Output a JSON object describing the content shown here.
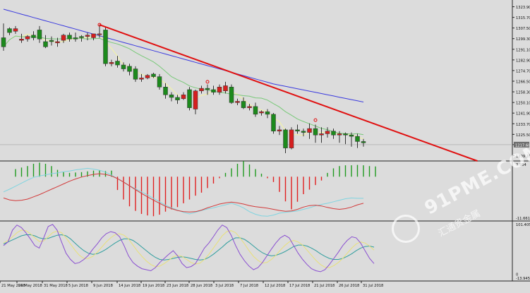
{
  "chart_data": [
    {
      "type": "candlestick",
      "title": "",
      "price_ticks": [
        "1323.90",
        "1315.70",
        "1307.50",
        "1299.30",
        "1291.10",
        "1282.90",
        "1274.70",
        "1266.50",
        "1258.30",
        "1250.10",
        "1241.90",
        "1233.70",
        "1225.50",
        "1217.60",
        "1209.10"
      ],
      "current_price_label": "1217.60",
      "ylim": [
        1205,
        1328
      ],
      "x_labels": [
        "21 May 2018",
        "24 May 2018",
        "31 May 2018",
        "5 Jun 2018",
        "9 Jun 2018",
        "14 Jun 2018",
        "19 Jun 2018",
        "23 Jun 2018",
        "28 Jun 2018",
        "3 Jul 2018",
        "7 Jul 2018",
        "12 Jul 2018",
        "17 Jul 2018",
        "21 Jul 2018",
        "26 Jul 2018",
        "31 Jul 2018"
      ],
      "candles": [
        {
          "o": 1300,
          "h": 1311,
          "c": 1293,
          "l": 1290
        },
        {
          "o": 1307,
          "h": 1308,
          "c": 1304,
          "l": 1302
        },
        {
          "o": 1305,
          "h": 1309,
          "c": 1307,
          "l": 1303
        },
        {
          "o": 1298,
          "h": 1303,
          "c": 1299,
          "l": 1296
        },
        {
          "o": 1299,
          "h": 1302,
          "c": 1301,
          "l": 1297
        },
        {
          "o": 1302,
          "h": 1305,
          "c": 1300,
          "l": 1298
        },
        {
          "o": 1306,
          "h": 1309,
          "c": 1299,
          "l": 1296
        },
        {
          "o": 1297,
          "h": 1302,
          "c": 1293,
          "l": 1292
        },
        {
          "o": 1298,
          "h": 1301,
          "c": 1297,
          "l": 1294
        },
        {
          "o": 1296,
          "h": 1300,
          "c": 1297,
          "l": 1293
        },
        {
          "o": 1298,
          "h": 1303,
          "c": 1302,
          "l": 1296
        },
        {
          "o": 1302,
          "h": 1304,
          "c": 1299,
          "l": 1297
        },
        {
          "o": 1300,
          "h": 1304,
          "c": 1299,
          "l": 1297
        },
        {
          "o": 1301,
          "h": 1302,
          "c": 1300,
          "l": 1297
        },
        {
          "o": 1301,
          "h": 1304,
          "c": 1302,
          "l": 1298
        },
        {
          "o": 1300,
          "h": 1303,
          "c": 1303,
          "l": 1298
        },
        {
          "o": 1303,
          "h": 1310,
          "c": 1303,
          "l": 1300
        },
        {
          "o": 1306,
          "h": 1308,
          "c": 1280,
          "l": 1278
        },
        {
          "o": 1280,
          "h": 1283,
          "c": 1281,
          "l": 1278
        },
        {
          "o": 1282,
          "h": 1286,
          "c": 1279,
          "l": 1277
        },
        {
          "o": 1279,
          "h": 1281,
          "c": 1276,
          "l": 1274
        },
        {
          "o": 1278,
          "h": 1280,
          "c": 1274,
          "l": 1271
        },
        {
          "o": 1276,
          "h": 1278,
          "c": 1268,
          "l": 1266
        },
        {
          "o": 1268,
          "h": 1272,
          "c": 1269,
          "l": 1266
        },
        {
          "o": 1269,
          "h": 1272,
          "c": 1271,
          "l": 1268
        },
        {
          "o": 1272,
          "h": 1273,
          "c": 1270,
          "l": 1269
        },
        {
          "o": 1270,
          "h": 1272,
          "c": 1262,
          "l": 1260
        },
        {
          "o": 1262,
          "h": 1265,
          "c": 1256,
          "l": 1253
        },
        {
          "o": 1256,
          "h": 1258,
          "c": 1254,
          "l": 1251
        },
        {
          "o": 1254,
          "h": 1256,
          "c": 1252,
          "l": 1249
        },
        {
          "o": 1253,
          "h": 1258,
          "c": 1256,
          "l": 1252
        },
        {
          "o": 1260,
          "h": 1262,
          "c": 1246,
          "l": 1244
        },
        {
          "o": 1245,
          "h": 1260,
          "c": 1259,
          "l": 1241
        },
        {
          "o": 1259,
          "h": 1263,
          "c": 1261,
          "l": 1257
        },
        {
          "o": 1261,
          "h": 1264,
          "c": 1260,
          "l": 1256
        },
        {
          "o": 1260,
          "h": 1263,
          "c": 1258,
          "l": 1256
        },
        {
          "o": 1258,
          "h": 1264,
          "c": 1262,
          "l": 1256
        },
        {
          "o": 1259,
          "h": 1266,
          "c": 1263,
          "l": 1257
        },
        {
          "o": 1262,
          "h": 1264,
          "c": 1250,
          "l": 1249
        },
        {
          "o": 1250,
          "h": 1253,
          "c": 1251,
          "l": 1248
        },
        {
          "o": 1251,
          "h": 1254,
          "c": 1246,
          "l": 1245
        },
        {
          "o": 1246,
          "h": 1249,
          "c": 1247,
          "l": 1244
        },
        {
          "o": 1247,
          "h": 1250,
          "c": 1241,
          "l": 1239
        },
        {
          "o": 1242,
          "h": 1244,
          "c": 1243,
          "l": 1240
        },
        {
          "o": 1243,
          "h": 1245,
          "c": 1241,
          "l": 1238
        },
        {
          "o": 1241,
          "h": 1242,
          "c": 1228,
          "l": 1226
        },
        {
          "o": 1228,
          "h": 1232,
          "c": 1229,
          "l": 1225
        },
        {
          "o": 1229,
          "h": 1230,
          "c": 1215,
          "l": 1211
        },
        {
          "o": 1215,
          "h": 1231,
          "c": 1229,
          "l": 1214
        },
        {
          "o": 1229,
          "h": 1233,
          "c": 1228,
          "l": 1226
        },
        {
          "o": 1228,
          "h": 1230,
          "c": 1227,
          "l": 1224
        },
        {
          "o": 1227,
          "h": 1234,
          "c": 1230,
          "l": 1222
        },
        {
          "o": 1230,
          "h": 1233,
          "c": 1225,
          "l": 1219
        },
        {
          "o": 1225,
          "h": 1231,
          "c": 1226,
          "l": 1219
        },
        {
          "o": 1226,
          "h": 1231,
          "c": 1228,
          "l": 1223
        },
        {
          "o": 1228,
          "h": 1230,
          "c": 1225,
          "l": 1222
        },
        {
          "o": 1225,
          "h": 1228,
          "c": 1226,
          "l": 1219
        },
        {
          "o": 1226,
          "h": 1227,
          "c": 1225,
          "l": 1218
        },
        {
          "o": 1225,
          "h": 1227,
          "c": 1224,
          "l": 1216
        },
        {
          "o": 1224,
          "h": 1226,
          "c": 1220,
          "l": 1215
        },
        {
          "o": 1220,
          "h": 1222,
          "c": 1219,
          "l": 1216
        }
      ],
      "trendline_start": [
        16,
        1310
      ],
      "trendline_end": [
        79,
        1205
      ]
    },
    {
      "type": "bar",
      "indicator": "MACD",
      "ytick_top": "3.954",
      "ytick_bottom": "-11.661",
      "ylim": [
        -11.661,
        3.954
      ],
      "values": [
        2.0,
        2.4,
        2.8,
        3.4,
        3.7,
        3.4,
        2.8,
        1.8,
        1.2,
        1.0,
        1.1,
        1.2,
        1.4,
        1.6,
        1.7,
        1.5,
        1.6,
        -3.5,
        -6.0,
        -7.8,
        -9.0,
        -9.8,
        -10.2,
        -10.4,
        -10.0,
        -9.2,
        -8.6,
        -8.0,
        -7.0,
        -6.0,
        -5.0,
        -4.2,
        -3.0,
        -1.8,
        -0.4,
        1.0,
        2.2,
        3.4,
        4.1,
        3.2,
        2.0,
        0.8,
        -0.4,
        -1.4,
        -4.0,
        -6.5,
        -8.6,
        -6.6,
        -4.6,
        -3.4,
        -2.2,
        -1.0,
        1.0,
        2.2,
        2.8,
        3.0,
        3.0,
        3.1,
        3.0,
        2.8,
        2.7
      ],
      "signal_cyan": [
        -4.0,
        -3.3,
        -2.5,
        -1.7,
        -0.9,
        -0.2,
        0.2,
        0.5,
        0.8,
        1.0,
        1.3,
        1.5,
        1.8,
        2.0,
        2.2,
        2.0,
        1.7,
        1.2,
        0.4,
        -0.5,
        -1.4,
        -2.4,
        -3.2,
        -4.0,
        -4.8,
        -5.7,
        -6.6,
        -7.5,
        -8.2,
        -8.8,
        -9.4,
        -9.8,
        -9.4,
        -8.9,
        -8.5,
        -8.2,
        -7.8,
        -7.4,
        -7.0,
        -7.5,
        -8.2,
        -9.2,
        -9.9,
        -10.3,
        -10.4,
        -10.1,
        -9.6,
        -9.4,
        -9.2,
        -9.0,
        -8.6,
        -8.2,
        -7.7,
        -7.3,
        -7.0,
        -6.6,
        -6.2,
        -5.8,
        -5.6,
        -5.7,
        -5.7
      ],
      "signal_red": [
        -5.6,
        -6.1,
        -6.3,
        -6.2,
        -5.9,
        -5.3,
        -4.7,
        -4.0,
        -3.3,
        -2.6,
        -1.9,
        -1.2,
        -0.6,
        -0.1,
        0.3,
        0.6,
        0.8,
        0.6,
        0.2,
        -0.5,
        -1.4,
        -2.4,
        -3.4,
        -4.4,
        -5.3,
        -6.2,
        -7.0,
        -7.8,
        -8.4,
        -8.9,
        -9.2,
        -9.3,
        -9.2,
        -8.8,
        -8.2,
        -7.7,
        -7.2,
        -6.9,
        -6.7,
        -6.9,
        -7.2,
        -7.6,
        -7.9,
        -8.1,
        -8.3,
        -8.6,
        -8.9,
        -9.1,
        -9.0,
        -8.6,
        -8.0,
        -7.6,
        -7.5,
        -7.7,
        -8.1,
        -8.4,
        -8.6,
        -8.4,
        -8.0,
        -7.4,
        -7.0
      ]
    },
    {
      "type": "line",
      "indicator": "stochastic",
      "ytick_top": "101.405",
      "ytick_mid": "0",
      "ytick_bottom": "-13.945",
      "ylim": [
        -13.945,
        101.405
      ],
      "series_purple": [
        55,
        62,
        85,
        95,
        90,
        80,
        68,
        55,
        50,
        70,
        92,
        96,
        85,
        62,
        40,
        28,
        20,
        22,
        28,
        36,
        48,
        58,
        70,
        78,
        82,
        80,
        72,
        55,
        35,
        22,
        15,
        10,
        8,
        6,
        12,
        22,
        30,
        38,
        45,
        35,
        20,
        12,
        14,
        20,
        35,
        50,
        60,
        72,
        85,
        95,
        90,
        75,
        55,
        38,
        25,
        15,
        8,
        12,
        22,
        35,
        48,
        60,
        70,
        75,
        70,
        55,
        40,
        28,
        18,
        10,
        6,
        4,
        8,
        18,
        30,
        42,
        55,
        65,
        72,
        70,
        60,
        45,
        30,
        20
      ],
      "series_yellow": [
        60,
        65,
        72,
        80,
        85,
        84,
        78,
        70,
        63,
        64,
        72,
        80,
        83,
        80,
        70,
        58,
        46,
        36,
        30,
        30,
        34,
        42,
        52,
        62,
        70,
        76,
        78,
        75,
        68,
        56,
        44,
        34,
        25,
        18,
        14,
        15,
        20,
        26,
        33,
        36,
        34,
        28,
        22,
        19,
        21,
        28,
        38,
        50,
        62,
        74,
        82,
        84,
        80,
        70,
        58,
        45,
        34,
        26,
        21,
        22,
        28,
        36,
        46,
        55,
        62,
        65,
        62,
        56,
        46,
        36,
        26,
        18,
        13,
        12,
        16,
        22,
        30,
        40,
        50,
        58,
        62,
        60,
        54,
        46
      ],
      "series_green": [
        58,
        62,
        66,
        70,
        74,
        76,
        76,
        74,
        70,
        68,
        69,
        72,
        75,
        76,
        74,
        68,
        60,
        52,
        45,
        40,
        38,
        39,
        43,
        48,
        54,
        60,
        65,
        68,
        68,
        65,
        59,
        52,
        45,
        38,
        32,
        28,
        27,
        28,
        30,
        32,
        33,
        32,
        30,
        28,
        27,
        28,
        32,
        38,
        45,
        52,
        60,
        66,
        70,
        70,
        67,
        61,
        54,
        47,
        41,
        37,
        35,
        36,
        39,
        43,
        48,
        53,
        56,
        56,
        54,
        50,
        45,
        39,
        34,
        30,
        28,
        28,
        30,
        34,
        39,
        45,
        50,
        53,
        54,
        52
      ]
    }
  ]
}
